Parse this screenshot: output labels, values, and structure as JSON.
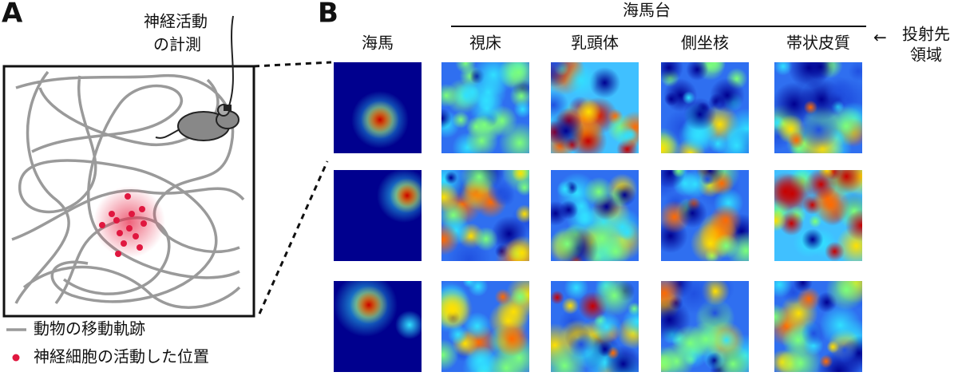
{
  "panel_a": {
    "label": "A",
    "recording": [
      "神経活動",
      "の計測"
    ],
    "legend": [
      {
        "label": "動物の移動軌跡"
      },
      {
        "label": "神経細胞の活動した位置"
      }
    ]
  },
  "panel_b": {
    "label": "B",
    "group": "海馬台",
    "columns": [
      "海馬",
      "視床",
      "乳頭体",
      "側坐核",
      "帯状皮質"
    ],
    "projection_arrow": "←",
    "projection": [
      "投射先",
      "領域"
    ]
  }
}
